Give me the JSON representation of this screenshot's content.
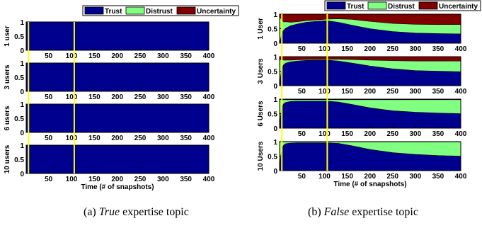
{
  "chart_data": [
    {
      "type": "area",
      "stacked": true,
      "caption": {
        "label": "(a)",
        "emph": "True",
        "rest": "expertise topic"
      },
      "legend": [
        "Trust",
        "Distrust",
        "Uncertainty"
      ],
      "legend_position": "top-right",
      "colors": {
        "Trust": "#00008f",
        "Distrust": "#80ff80",
        "Uncertainty": "#800000"
      },
      "xlabel": "Time (# of snapshots)",
      "xlim": [
        1,
        400
      ],
      "ylim": [
        0,
        1
      ],
      "xticks": [
        "50",
        "100",
        "150",
        "200",
        "250",
        "300",
        "350",
        "400"
      ],
      "yticks": [
        "0",
        "0.5",
        "1"
      ],
      "vlines": [
        6,
        106
      ],
      "vline_color": "#ffff00",
      "subplots": [
        {
          "ylabel": "1 user",
          "x": [
            1,
            400
          ],
          "trust": [
            1,
            1
          ],
          "distrust": [
            0,
            0
          ]
        },
        {
          "ylabel": "3 users",
          "x": [
            1,
            400
          ],
          "trust": [
            1,
            1
          ],
          "distrust": [
            0,
            0
          ]
        },
        {
          "ylabel": "6 users",
          "x": [
            1,
            400
          ],
          "trust": [
            1,
            1
          ],
          "distrust": [
            0,
            0
          ]
        },
        {
          "ylabel": "10 users",
          "x": [
            1,
            400
          ],
          "trust": [
            1,
            1
          ],
          "distrust": [
            0,
            0
          ]
        }
      ]
    },
    {
      "type": "area",
      "stacked": true,
      "caption": {
        "label": "(b)",
        "emph": "False",
        "rest": "expertise topic"
      },
      "legend": [
        "Trust",
        "Distrust",
        "Uncertainty"
      ],
      "legend_position": "top-right",
      "colors": {
        "Trust": "#00008f",
        "Distrust": "#80ff80",
        "Uncertainty": "#800000"
      },
      "xlabel": "Time (# of snapshots)",
      "xlim": [
        1,
        400
      ],
      "ylim": [
        0,
        1
      ],
      "xticks": [
        "50",
        "100",
        "150",
        "200",
        "250",
        "300",
        "350",
        "400"
      ],
      "yticks": [
        "0",
        "0.5",
        "1"
      ],
      "vlines": [
        6,
        106
      ],
      "vline_color": "#ffff00",
      "subplots": [
        {
          "ylabel": "1 User",
          "x": [
            1,
            3,
            6,
            10,
            15,
            25,
            40,
            60,
            80,
            100,
            106,
            130,
            160,
            200,
            250,
            300,
            350,
            400
          ],
          "trust": [
            0,
            0.12,
            0.35,
            0.45,
            0.52,
            0.6,
            0.66,
            0.72,
            0.75,
            0.77,
            0.77,
            0.72,
            0.62,
            0.5,
            0.4,
            0.35,
            0.33,
            0.32
          ],
          "distrust": [
            0.9,
            0.75,
            0.45,
            0.28,
            0.22,
            0.12,
            0.08,
            0.06,
            0.05,
            0.05,
            0.06,
            0.12,
            0.2,
            0.25,
            0.28,
            0.3,
            0.31,
            0.32
          ]
        },
        {
          "ylabel": "3 Users",
          "x": [
            1,
            3,
            6,
            10,
            15,
            25,
            40,
            60,
            80,
            100,
            106,
            130,
            160,
            200,
            250,
            300,
            350,
            400
          ],
          "trust": [
            0,
            0.3,
            0.6,
            0.72,
            0.78,
            0.82,
            0.85,
            0.87,
            0.88,
            0.88,
            0.88,
            0.85,
            0.78,
            0.68,
            0.58,
            0.52,
            0.5,
            0.48
          ],
          "distrust": [
            0.85,
            0.6,
            0.3,
            0.16,
            0.1,
            0.06,
            0.04,
            0.03,
            0.03,
            0.03,
            0.03,
            0.06,
            0.12,
            0.2,
            0.28,
            0.33,
            0.35,
            0.37
          ]
        },
        {
          "ylabel": "6 Users",
          "x": [
            1,
            3,
            6,
            10,
            15,
            25,
            40,
            60,
            80,
            100,
            106,
            130,
            160,
            200,
            250,
            300,
            350,
            400
          ],
          "trust": [
            0,
            0.4,
            0.72,
            0.84,
            0.89,
            0.92,
            0.93,
            0.93,
            0.93,
            0.93,
            0.93,
            0.9,
            0.82,
            0.7,
            0.6,
            0.55,
            0.52,
            0.5
          ],
          "distrust": [
            0.98,
            0.58,
            0.26,
            0.14,
            0.09,
            0.06,
            0.05,
            0.05,
            0.05,
            0.05,
            0.05,
            0.08,
            0.16,
            0.28,
            0.38,
            0.43,
            0.46,
            0.48
          ]
        },
        {
          "ylabel": "10 Users",
          "x": [
            1,
            3,
            6,
            10,
            15,
            25,
            40,
            60,
            80,
            100,
            106,
            130,
            160,
            200,
            250,
            300,
            350,
            400
          ],
          "trust": [
            0,
            0.42,
            0.76,
            0.88,
            0.93,
            0.95,
            0.96,
            0.96,
            0.96,
            0.96,
            0.96,
            0.94,
            0.86,
            0.73,
            0.62,
            0.56,
            0.52,
            0.5
          ],
          "distrust": [
            0.99,
            0.57,
            0.23,
            0.11,
            0.06,
            0.04,
            0.03,
            0.03,
            0.03,
            0.03,
            0.03,
            0.05,
            0.13,
            0.26,
            0.37,
            0.43,
            0.47,
            0.49
          ]
        }
      ]
    }
  ]
}
